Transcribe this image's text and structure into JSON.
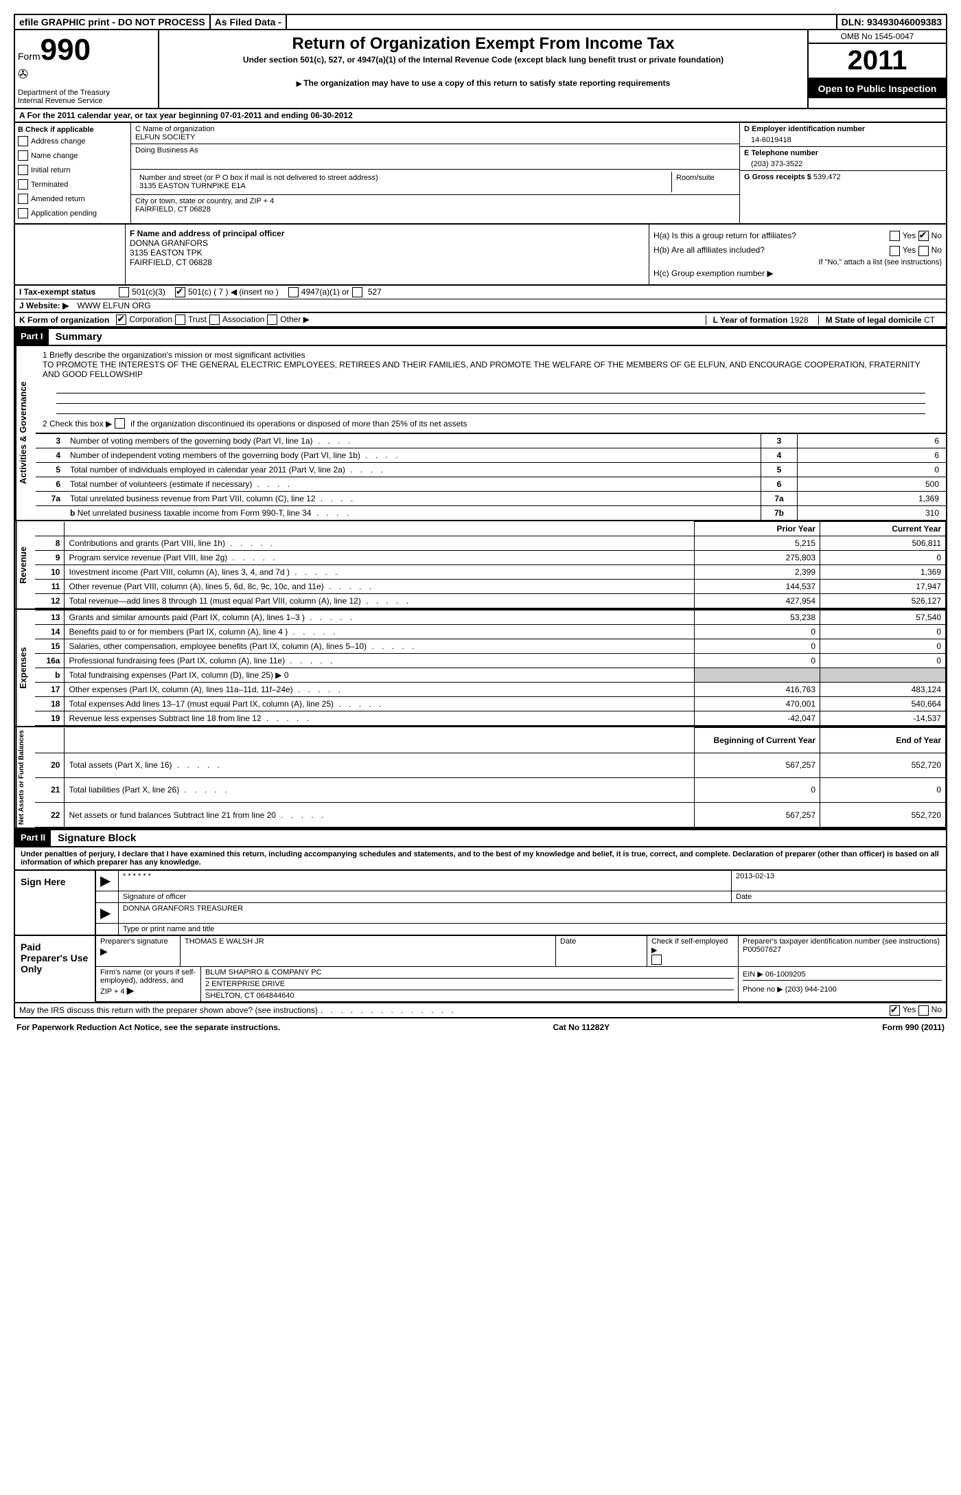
{
  "top_bar": {
    "efile": "efile GRAPHIC print - DO NOT PROCESS",
    "asfiled": "As Filed Data -",
    "dln_label": "DLN:",
    "dln": "93493046009383"
  },
  "header": {
    "form_label": "Form",
    "form_num": "990",
    "dept": "Department of the Treasury",
    "irs": "Internal Revenue Service",
    "title": "Return of Organization Exempt From Income Tax",
    "subtitle": "Under section 501(c), 527, or 4947(a)(1) of the Internal Revenue Code (except black lung benefit trust or private foundation)",
    "note": "The organization may have to use a copy of this return to satisfy state reporting requirements",
    "omb": "OMB No 1545-0047",
    "year": "2011",
    "inspection": "Open to Public Inspection"
  },
  "line_a": "A For the 2011 calendar year, or tax year beginning 07-01-2011    and ending 06-30-2012",
  "col_b": {
    "header": "B Check if applicable",
    "items": [
      "Address change",
      "Name change",
      "Initial return",
      "Terminated",
      "Amended return",
      "Application pending"
    ]
  },
  "col_c": {
    "name_label": "C Name of organization",
    "name": "ELFUN SOCIETY",
    "dba_label": "Doing Business As",
    "dba": "",
    "addr_label": "Number and street (or P O  box if mail is not delivered to street address)",
    "room_label": "Room/suite",
    "addr": "3135 EASTON TURNPIKE E1A",
    "city_label": "City or town, state or country, and ZIP + 4",
    "city": "FAIRFIELD, CT  06828"
  },
  "col_d": {
    "ein_label": "D Employer identification number",
    "ein": "14-6019418",
    "tel_label": "E Telephone number",
    "tel": "(203) 373-3522",
    "gross_label": "G Gross receipts $",
    "gross": "539,472"
  },
  "officer": {
    "label": "F   Name and address of principal officer",
    "name": "DONNA GRANFORS",
    "addr1": "3135 EASTON TPK",
    "addr2": "FAIRFIELD, CT  06828"
  },
  "h_section": {
    "ha": "H(a)  Is this a group return for affiliates?",
    "hb": "H(b)  Are all affiliates included?",
    "hb_note": "If \"No,\" attach a list  (see instructions)",
    "hc": "H(c)   Group exemption number ▶",
    "yes": "Yes",
    "no": "No"
  },
  "line_i": {
    "label": "I   Tax-exempt status",
    "c3": "501(c)(3)",
    "c": "501(c) ( 7 ) ◀ (insert no )",
    "a1": "4947(a)(1) or",
    "s527": "527"
  },
  "line_j": {
    "label": "J   Website: ▶",
    "value": "WWW ELFUN ORG"
  },
  "line_k": {
    "label": "K Form of organization",
    "corp": "Corporation",
    "trust": "Trust",
    "assoc": "Association",
    "other": "Other ▶",
    "year_label": "L Year of formation",
    "year": "1928",
    "state_label": "M State of legal domicile",
    "state": "CT"
  },
  "part1": {
    "label": "Part I",
    "title": "Summary"
  },
  "mission": {
    "label": "1   Briefly describe the organization's mission or most significant activities",
    "text": "TO PROMOTE THE INTERESTS OF THE GENERAL ELECTRIC EMPLOYEES, RETIREES AND THEIR FAMILIES, AND PROMOTE THE WELFARE OF THE MEMBERS OF GE ELFUN, AND ENCOURAGE COOPERATION, FRATERNITY AND GOOD FELLOWSHIP"
  },
  "line2": "2   Check this box ▶     if the organization discontinued its operations or disposed of more than 25% of its net assets",
  "governance_rows": [
    {
      "n": "3",
      "desc": "Number of voting members of the governing body (Part VI, line 1a)",
      "val": "6"
    },
    {
      "n": "4",
      "desc": "Number of independent voting members of the governing body (Part VI, line 1b)",
      "val": "6"
    },
    {
      "n": "5",
      "desc": "Total number of individuals employed in calendar year 2011 (Part V, line 2a)",
      "val": "0"
    },
    {
      "n": "6",
      "desc": "Total number of volunteers (estimate if necessary)",
      "val": "500"
    },
    {
      "n": "7a",
      "desc": "Total unrelated business revenue from Part VIII, column (C), line 12",
      "val": "1,369"
    },
    {
      "n": "7b",
      "desc": "Net unrelated business taxable income from Form 990-T, line 34",
      "val": "310",
      "indent": true,
      "label": "b"
    }
  ],
  "fin_headers": {
    "prior": "Prior Year",
    "current": "Current Year",
    "boy": "Beginning of Current Year",
    "eoy": "End of Year"
  },
  "revenue_rows": [
    {
      "n": "8",
      "desc": "Contributions and grants (Part VIII, line 1h)",
      "p": "5,215",
      "c": "506,811"
    },
    {
      "n": "9",
      "desc": "Program service revenue (Part VIII, line 2g)",
      "p": "275,803",
      "c": "0"
    },
    {
      "n": "10",
      "desc": "Investment income (Part VIII, column (A), lines 3, 4, and 7d )",
      "p": "2,399",
      "c": "1,369"
    },
    {
      "n": "11",
      "desc": "Other revenue (Part VIII, column (A), lines 5, 6d, 8c, 9c, 10c, and 11e)",
      "p": "144,537",
      "c": "17,947"
    },
    {
      "n": "12",
      "desc": "Total revenue—add lines 8 through 11 (must equal Part VIII, column (A), line 12)",
      "p": "427,954",
      "c": "526,127"
    }
  ],
  "expense_rows": [
    {
      "n": "13",
      "desc": "Grants and similar amounts paid (Part IX, column (A), lines 1–3 )",
      "p": "53,238",
      "c": "57,540"
    },
    {
      "n": "14",
      "desc": "Benefits paid to or for members (Part IX, column (A), line 4 )",
      "p": "0",
      "c": "0"
    },
    {
      "n": "15",
      "desc": "Salaries, other compensation, employee benefits (Part IX, column (A), lines 5–10)",
      "p": "0",
      "c": "0"
    },
    {
      "n": "16a",
      "desc": "Professional fundraising fees (Part IX, column (A), line 11e)",
      "p": "0",
      "c": "0"
    },
    {
      "n": "b",
      "desc": "Total fundraising expenses (Part IX, column (D), line 25) ▶ 0",
      "shaded": true
    },
    {
      "n": "17",
      "desc": "Other expenses (Part IX, column (A), lines 11a–11d, 11f–24e)",
      "p": "416,763",
      "c": "483,124"
    },
    {
      "n": "18",
      "desc": "Total expenses  Add lines 13–17 (must equal Part IX, column (A), line 25)",
      "p": "470,001",
      "c": "540,664"
    },
    {
      "n": "19",
      "desc": "Revenue less expenses  Subtract line 18 from line 12",
      "p": "-42,047",
      "c": "-14,537"
    }
  ],
  "netassets_rows": [
    {
      "n": "20",
      "desc": "Total assets (Part X, line 16)",
      "p": "567,257",
      "c": "552,720"
    },
    {
      "n": "21",
      "desc": "Total liabilities (Part X, line 26)",
      "p": "0",
      "c": "0"
    },
    {
      "n": "22",
      "desc": "Net assets or fund balances  Subtract line 21 from line 20",
      "p": "567,257",
      "c": "552,720"
    }
  ],
  "sections": {
    "gov": "Activities & Governance",
    "rev": "Revenue",
    "exp": "Expenses",
    "net": "Net Assets or Fund Balances"
  },
  "part2": {
    "label": "Part II",
    "title": "Signature Block"
  },
  "perjury": "Under penalties of perjury, I declare that I have examined this return, including accompanying schedules and statements, and to the best of my knowledge and belief, it is true, correct, and complete. Declaration of preparer (other than officer) is based on all information of which preparer has any knowledge.",
  "sign": {
    "label": "Sign Here",
    "stars": "* * * * * *",
    "sig_label": "Signature of officer",
    "date": "2013-02-13",
    "date_label": "Date",
    "name": "DONNA GRANFORS TREASURER",
    "name_label": "Type or print name and title"
  },
  "preparer": {
    "label": "Paid Preparer's Use Only",
    "prep_sig_label": "Preparer's signature",
    "prep_name": "THOMAS E WALSH JR",
    "date_label": "Date",
    "self_label": "Check if self-employed ▶",
    "ptin_label": "Preparer's taxpayer identification number (see instructions)",
    "ptin": "P00507627",
    "firm_label": "Firm's name (or yours if self-employed), address, and ZIP + 4",
    "firm_name": "BLUM SHAPIRO & COMPANY PC",
    "firm_addr1": "2 ENTERPRISE DRIVE",
    "firm_addr2": "SHELTON, CT  064844640",
    "ein_label": "EIN  ▶",
    "ein": "06-1009205",
    "phone_label": "Phone no  ▶",
    "phone": "(203) 944-2100"
  },
  "discuss": {
    "text": "May the IRS discuss this return with the preparer shown above? (see instructions)",
    "yes": "Yes",
    "no": "No"
  },
  "footer": {
    "left": "For Paperwork Reduction Act Notice, see the separate instructions.",
    "center": "Cat No 11282Y",
    "right": "Form 990 (2011)"
  }
}
